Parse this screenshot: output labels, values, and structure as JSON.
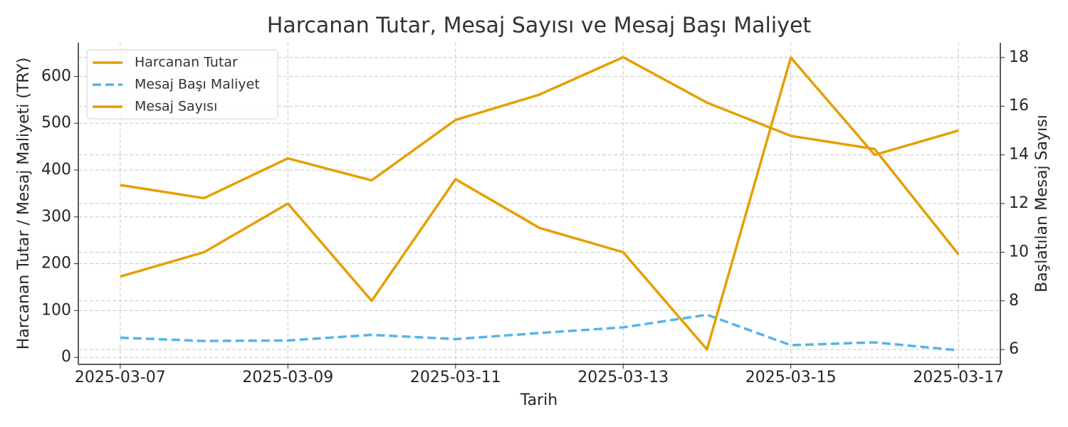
{
  "chart_data": {
    "type": "line",
    "title": "Harcanan Tutar, Mesaj Sayısı ve Mesaj Başı Maliyet",
    "x_label": "Tarih",
    "y_label": "Harcanan Tutar / Mesaj Maliyeti (TRY)",
    "y2_label": "Başlatılan Mesaj Sayısı",
    "x": [
      "2025-03-07",
      "2025-03-08",
      "2025-03-09",
      "2025-03-10",
      "2025-03-11",
      "2025-03-12",
      "2025-03-13",
      "2025-03-14",
      "2025-03-15",
      "2025-03-16",
      "2025-03-17"
    ],
    "xticks": [
      "2025-03-07",
      "2025-03-09",
      "2025-03-11",
      "2025-03-13",
      "2025-03-15",
      "2025-03-17"
    ],
    "series": [
      {
        "name": "Harcanan Tutar",
        "color": "#e69f00",
        "linestyle": "solid",
        "axis": "y",
        "values": [
          368,
          340,
          425,
          378,
          507,
          561,
          641,
          544,
          473,
          445,
          220
        ]
      },
      {
        "name": "Mesaj Başı Maliyet",
        "color": "#56b4e9",
        "linestyle": "dashed",
        "axis": "y",
        "values": [
          42,
          35,
          36,
          48,
          39,
          52,
          64,
          91,
          26,
          32,
          15
        ]
      },
      {
        "name": "Mesaj Sayısı",
        "color": "#e69f00",
        "linestyle": "solid",
        "axis": "y2",
        "values": [
          9,
          10,
          12,
          8,
          13,
          11,
          10,
          6,
          18,
          14,
          15
        ]
      }
    ],
    "ylim": [
      -15,
      672
    ],
    "yticks": [
      0,
      100,
      200,
      300,
      400,
      500,
      600
    ],
    "y2lim": [
      5.39,
      18.61
    ],
    "y2ticks": [
      6,
      8,
      10,
      12,
      14,
      16,
      18
    ],
    "grid": true,
    "legend": "upper-left"
  }
}
